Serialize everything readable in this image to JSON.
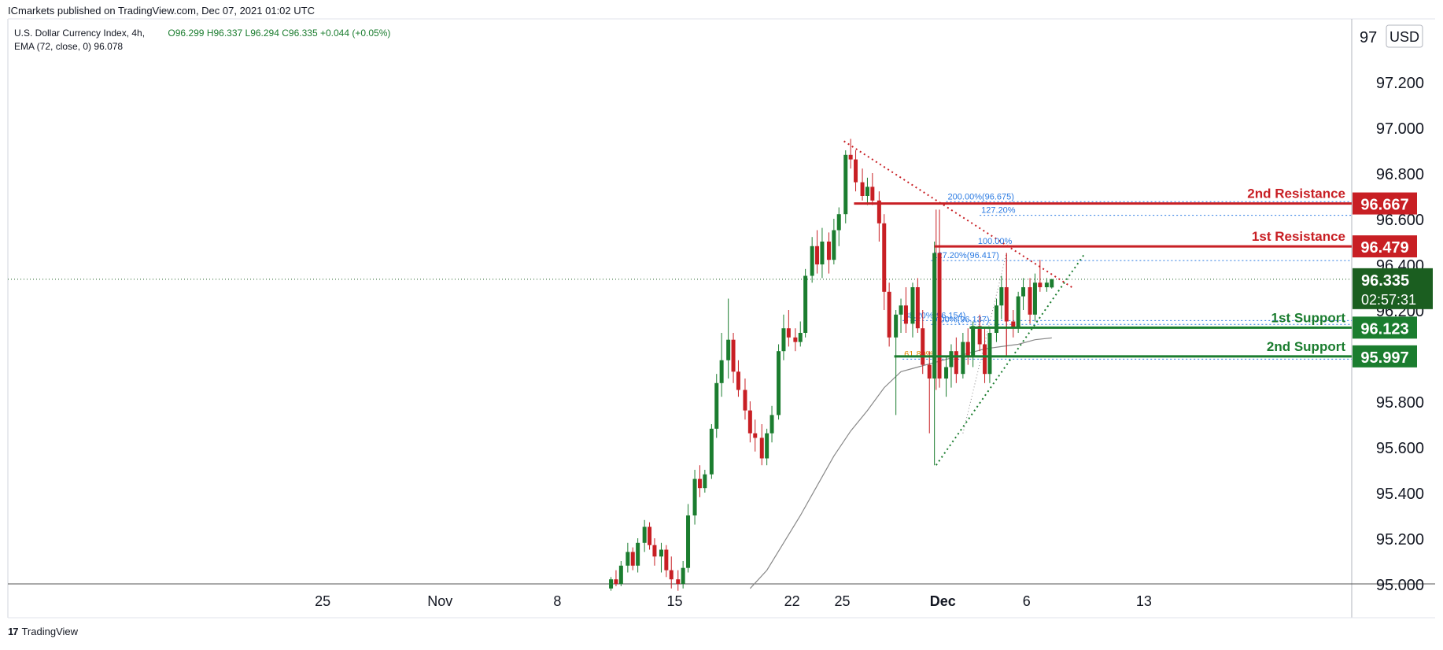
{
  "header": {
    "publisher_text": "ICmarkets published on TradingView.com, Dec 07, 2021 01:02 UTC"
  },
  "legend": {
    "symbol": "U.S. Dollar Currency Index, 4h,",
    "open": "O96.299",
    "high": "H96.337",
    "low": "L96.294",
    "close": "C96.335",
    "change": "+0.044 (+0.05%)",
    "ema_label": "EMA (72, close, 0)",
    "ema_value": "96.078"
  },
  "footer": {
    "logo_glyph": "17",
    "brand": "TradingView"
  },
  "colors": {
    "up": "#1b7d2f",
    "down": "#c81f24",
    "resistance": "#c81f24",
    "support": "#1b7d2f",
    "fib": "#2a7ae2",
    "ema": "#888888",
    "price_label": "#1b5e20"
  },
  "chart_data": {
    "type": "candlestick",
    "currency": "USD",
    "ylim": [
      94.98,
      97.05
    ],
    "yticks": [
      "97.200",
      "97.000",
      "96.800",
      "96.600",
      "96.400",
      "96.200",
      "95.800",
      "95.600",
      "95.400",
      "95.200",
      "95.000"
    ],
    "ytick_values": [
      97.2,
      97.0,
      96.8,
      96.6,
      96.4,
      96.2,
      95.8,
      95.6,
      95.4,
      95.2,
      95.0
    ],
    "ytick_top_partial": "97",
    "xticks": [
      "25",
      "Nov",
      "8",
      "15",
      "22",
      "25",
      "Dec",
      "6",
      "13"
    ],
    "xtick_days": [
      -6,
      1,
      8,
      15,
      22,
      25,
      31,
      36,
      43
    ],
    "xtick_bold": [
      false,
      false,
      false,
      false,
      false,
      false,
      true,
      false,
      false
    ],
    "current_price": {
      "value": 96.335,
      "label": "96.335",
      "countdown": "02:57:31"
    },
    "levels": [
      {
        "name": "2nd Resistance",
        "price": 96.667,
        "label": "96.667",
        "kind": "resistance"
      },
      {
        "name": "1st Resistance",
        "price": 96.479,
        "label": "96.479",
        "kind": "resistance"
      },
      {
        "name": "1st Support",
        "price": 96.123,
        "label": "96.123",
        "kind": "support"
      },
      {
        "name": "2nd Support",
        "price": 95.997,
        "label": "95.997",
        "kind": "support"
      }
    ],
    "fib_annotations": [
      {
        "text": "200.00%(96.675)",
        "price": 96.675,
        "day": 31.2
      },
      {
        "text": "127.20%",
        "price": 96.615,
        "day": 33.2
      },
      {
        "text": "100.00%",
        "price": 96.48,
        "day": 33.0
      },
      {
        "text": "127.20%(96.417)",
        "price": 96.417,
        "day": 30.3
      },
      {
        "text": "38.20%(96.154)",
        "price": 96.154,
        "day": 28.6
      },
      {
        "text": "0.00%(96.137)",
        "price": 96.137,
        "day": 30.3
      },
      {
        "text": "61.80%",
        "price": 95.985,
        "day": 28.6
      }
    ],
    "candles_4h": [
      [
        11.2,
        94.98,
        95.03,
        94.97,
        95.02
      ],
      [
        11.5,
        95.02,
        95.06,
        94.99,
        95.0
      ],
      [
        11.8,
        95.0,
        95.1,
        94.99,
        95.08
      ],
      [
        12.2,
        95.08,
        95.18,
        95.05,
        95.14
      ],
      [
        12.5,
        95.14,
        95.16,
        95.06,
        95.08
      ],
      [
        12.8,
        95.08,
        95.2,
        95.05,
        95.18
      ],
      [
        13.2,
        95.18,
        95.28,
        95.14,
        95.25
      ],
      [
        13.5,
        95.25,
        95.27,
        95.15,
        95.17
      ],
      [
        13.8,
        95.17,
        95.2,
        95.08,
        95.12
      ],
      [
        14.2,
        95.12,
        95.18,
        95.05,
        95.15
      ],
      [
        14.5,
        95.15,
        95.17,
        95.03,
        95.06
      ],
      [
        14.8,
        95.06,
        95.12,
        94.98,
        95.02
      ],
      [
        15.2,
        95.02,
        95.06,
        94.97,
        95.0
      ],
      [
        15.5,
        95.0,
        95.1,
        94.98,
        95.07
      ],
      [
        15.8,
        95.07,
        95.35,
        95.05,
        95.3
      ],
      [
        16.2,
        95.3,
        95.5,
        95.26,
        95.46
      ],
      [
        16.5,
        95.46,
        95.52,
        95.38,
        95.42
      ],
      [
        16.8,
        95.42,
        95.5,
        95.4,
        95.48
      ],
      [
        17.2,
        95.48,
        95.7,
        95.46,
        95.68
      ],
      [
        17.5,
        95.68,
        95.92,
        95.64,
        95.88
      ],
      [
        17.8,
        95.88,
        96.1,
        95.82,
        95.98
      ],
      [
        18.2,
        95.98,
        96.25,
        95.9,
        96.07
      ],
      [
        18.5,
        96.07,
        96.1,
        95.88,
        95.93
      ],
      [
        18.8,
        95.93,
        95.98,
        95.82,
        95.85
      ],
      [
        19.2,
        95.85,
        95.9,
        95.72,
        95.76
      ],
      [
        19.5,
        95.76,
        95.8,
        95.62,
        95.66
      ],
      [
        19.8,
        95.66,
        95.72,
        95.58,
        95.64
      ],
      [
        20.2,
        95.64,
        95.7,
        95.52,
        95.55
      ],
      [
        20.5,
        95.55,
        95.68,
        95.52,
        95.66
      ],
      [
        20.8,
        95.66,
        95.78,
        95.62,
        95.74
      ],
      [
        21.2,
        95.74,
        96.05,
        95.72,
        96.02
      ],
      [
        21.5,
        96.02,
        96.18,
        95.98,
        96.12
      ],
      [
        21.8,
        96.12,
        96.2,
        96.04,
        96.08
      ],
      [
        22.2,
        96.08,
        96.12,
        96.02,
        96.06
      ],
      [
        22.5,
        96.06,
        96.15,
        96.04,
        96.1
      ],
      [
        22.8,
        96.1,
        96.38,
        96.08,
        96.35
      ],
      [
        23.2,
        96.35,
        96.52,
        96.32,
        96.48
      ],
      [
        23.5,
        96.48,
        96.55,
        96.36,
        96.4
      ],
      [
        23.8,
        96.4,
        96.56,
        96.34,
        96.5
      ],
      [
        24.2,
        96.5,
        96.54,
        96.36,
        96.42
      ],
      [
        24.5,
        96.42,
        96.6,
        96.4,
        96.55
      ],
      [
        24.8,
        96.55,
        96.65,
        96.48,
        96.62
      ],
      [
        25.2,
        96.62,
        96.9,
        96.58,
        96.88
      ],
      [
        25.5,
        96.88,
        96.95,
        96.82,
        96.86
      ],
      [
        25.8,
        96.86,
        96.9,
        96.72,
        96.76
      ],
      [
        26.2,
        96.76,
        96.82,
        96.68,
        96.7
      ],
      [
        26.5,
        96.7,
        96.78,
        96.66,
        96.74
      ],
      [
        26.8,
        96.74,
        96.8,
        96.66,
        96.68
      ],
      [
        27.2,
        96.68,
        96.72,
        96.5,
        96.58
      ],
      [
        27.5,
        96.58,
        96.62,
        96.2,
        96.28
      ],
      [
        27.8,
        96.28,
        96.32,
        96.04,
        96.08
      ],
      [
        28.2,
        96.08,
        96.2,
        95.74,
        96.18
      ],
      [
        28.5,
        96.18,
        96.25,
        96.1,
        96.22
      ],
      [
        28.8,
        96.22,
        96.3,
        96.1,
        96.14
      ],
      [
        29.2,
        96.14,
        96.32,
        96.08,
        96.3
      ],
      [
        29.5,
        96.3,
        96.34,
        96.1,
        96.12
      ],
      [
        29.8,
        96.12,
        96.2,
        95.92,
        95.96
      ],
      [
        30.2,
        95.96,
        96.02,
        95.66,
        95.9
      ],
      [
        30.5,
        95.9,
        96.5,
        95.52,
        96.45
      ],
      [
        30.8,
        96.45,
        96.64,
        95.86,
        95.9
      ],
      [
        31.2,
        95.9,
        96.0,
        95.82,
        95.95
      ],
      [
        31.5,
        95.95,
        96.05,
        95.86,
        96.02
      ],
      [
        31.8,
        96.02,
        96.08,
        95.88,
        95.92
      ],
      [
        32.2,
        95.92,
        96.1,
        95.9,
        96.06
      ],
      [
        32.5,
        96.06,
        96.12,
        95.96,
        96.0
      ],
      [
        32.8,
        96.0,
        96.15,
        95.95,
        96.13
      ],
      [
        33.2,
        96.13,
        96.18,
        96.02,
        96.05
      ],
      [
        33.5,
        96.05,
        96.12,
        95.88,
        95.92
      ],
      [
        33.8,
        95.92,
        96.12,
        95.88,
        96.1
      ],
      [
        34.2,
        96.1,
        96.25,
        96.06,
        96.22
      ],
      [
        34.5,
        96.22,
        96.35,
        96.16,
        96.3
      ],
      [
        34.8,
        96.3,
        96.45,
        96.0,
        96.15
      ],
      [
        35.2,
        96.15,
        96.2,
        96.08,
        96.12
      ],
      [
        35.5,
        96.12,
        96.28,
        96.1,
        96.26
      ],
      [
        35.8,
        96.26,
        96.34,
        96.2,
        96.3
      ],
      [
        36.2,
        96.3,
        96.34,
        96.14,
        96.18
      ],
      [
        36.5,
        96.18,
        96.36,
        96.15,
        96.32
      ],
      [
        36.8,
        96.32,
        96.42,
        96.28,
        96.3
      ],
      [
        37.2,
        96.3,
        96.34,
        96.28,
        96.32
      ],
      [
        37.5,
        96.299,
        96.337,
        96.294,
        96.335
      ]
    ],
    "ema_72": [
      [
        19.5,
        94.98
      ],
      [
        20.5,
        95.06
      ],
      [
        21.5,
        95.18
      ],
      [
        22.5,
        95.3
      ],
      [
        23.5,
        95.43
      ],
      [
        24.5,
        95.56
      ],
      [
        25.5,
        95.67
      ],
      [
        26.5,
        95.76
      ],
      [
        27.5,
        95.86
      ],
      [
        28.5,
        95.93
      ],
      [
        29.5,
        95.95
      ],
      [
        30.5,
        95.97
      ],
      [
        31.5,
        95.99
      ],
      [
        32.5,
        96.01
      ],
      [
        33.5,
        96.03
      ],
      [
        34.5,
        96.04
      ],
      [
        35.5,
        96.05
      ],
      [
        36.5,
        96.07
      ],
      [
        37.5,
        96.078
      ]
    ]
  }
}
